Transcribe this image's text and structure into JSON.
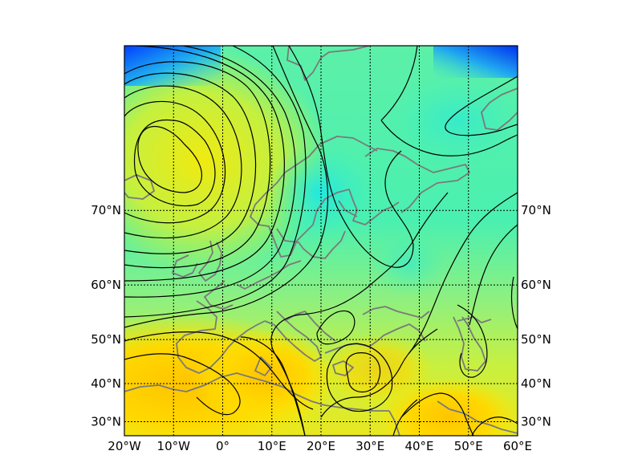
{
  "map": {
    "projection": "mercator",
    "extent": {
      "lon_min": -20,
      "lon_max": 60,
      "lat_min": 26,
      "lat_max": 82
    },
    "parallels": [
      30,
      40,
      50,
      60,
      70
    ],
    "meridians": [
      -20,
      -10,
      0,
      10,
      20,
      30,
      40,
      50,
      60
    ],
    "lat_labels": [
      "30°N",
      "40°N",
      "50°N",
      "60°N",
      "70°N"
    ],
    "lon_labels": [
      "20°W",
      "10°W",
      "0°",
      "10°E",
      "20°E",
      "30°E",
      "40°E",
      "50°E",
      "60°E"
    ],
    "grid": "dotted",
    "colors": {
      "coastline": "#7a7a7a",
      "contour": "#000000",
      "field_high": "#ffd200",
      "field_mid": "#b8f050",
      "field_low": "#28e8c0",
      "field_min": "#0030ff"
    }
  }
}
